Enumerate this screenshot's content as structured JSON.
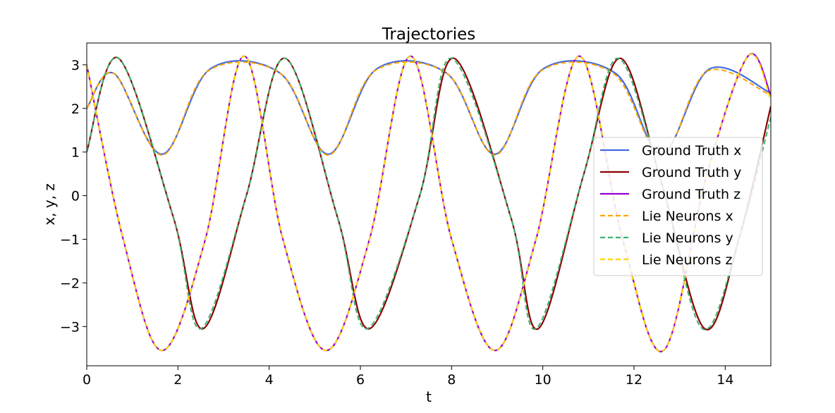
{
  "chart_data": {
    "type": "line",
    "title": "Trajectories",
    "xlabel": "t",
    "ylabel": "x, y, z",
    "xlim": [
      0,
      15
    ],
    "ylim": [
      -3.9,
      3.5
    ],
    "xticks": [
      0,
      2,
      4,
      6,
      8,
      10,
      12,
      14
    ],
    "yticks": [
      3,
      2,
      1,
      0,
      -1,
      -2,
      -3
    ],
    "xtick_labels": [
      "0",
      "2",
      "4",
      "6",
      "8",
      "10",
      "12",
      "14"
    ],
    "ytick_labels": [
      "3",
      "2",
      "1",
      "0",
      "−1",
      "−2",
      "−3"
    ],
    "grid": false,
    "legend_position": "center-right",
    "series": [
      {
        "name": "Ground Truth x",
        "color": "#4169e1",
        "dash": "solid",
        "x": [
          0,
          0.6,
          1.65,
          2.7,
          4.25,
          5.3,
          6.35,
          7.9,
          8.95,
          10.0,
          11.6,
          12.6,
          13.65,
          15.0
        ],
        "y": [
          2.0,
          2.8,
          0.95,
          2.9,
          2.8,
          0.95,
          2.9,
          2.8,
          0.95,
          2.9,
          2.8,
          0.95,
          2.9,
          2.35
        ]
      },
      {
        "name": "Ground Truth y",
        "color": "#8b0000",
        "dash": "solid",
        "x": [
          0,
          0.7,
          1.9,
          2.55,
          3.5,
          4.35,
          5.5,
          6.2,
          7.3,
          8.05,
          9.3,
          9.9,
          10.9,
          11.7,
          12.6,
          13.55,
          14.3,
          15.0
        ],
        "y": [
          1.0,
          3.15,
          -0.5,
          -3.05,
          0.0,
          3.15,
          -0.5,
          -3.05,
          0.0,
          3.15,
          -0.5,
          -3.05,
          0.5,
          3.15,
          0.3,
          -3.05,
          -1.0,
          2.05
        ]
      },
      {
        "name": "Ground Truth z",
        "color": "#9400d3",
        "dash": "solid",
        "x": [
          0,
          0.8,
          1.65,
          2.6,
          3.45,
          4.3,
          5.25,
          6.2,
          7.1,
          8.0,
          8.95,
          9.85,
          10.8,
          11.75,
          12.65,
          13.6,
          14.5,
          15.0
        ],
        "y": [
          3.0,
          -1.0,
          -3.55,
          -1.0,
          3.2,
          -1.0,
          -3.55,
          -1.0,
          3.2,
          -1.0,
          -3.55,
          -1.0,
          3.2,
          -1.0,
          -3.55,
          0.5,
          3.2,
          2.3
        ]
      },
      {
        "name": "Lie Neurons x",
        "color": "#ffa500",
        "dash": "dashed",
        "x": [
          0,
          0.6,
          1.65,
          2.65,
          4.25,
          5.3,
          6.3,
          7.9,
          8.95,
          9.95,
          11.55,
          12.6,
          13.6,
          15.0
        ],
        "y": [
          2.0,
          2.8,
          0.93,
          2.85,
          2.8,
          0.93,
          2.85,
          2.8,
          0.93,
          2.85,
          2.8,
          0.93,
          2.85,
          2.3
        ]
      },
      {
        "name": "Lie Neurons y",
        "color": "#3cb371",
        "dash": "dashed",
        "x": [
          0,
          0.7,
          1.9,
          2.5,
          3.5,
          4.35,
          5.5,
          6.15,
          7.3,
          8.0,
          9.3,
          9.85,
          10.9,
          11.65,
          12.6,
          13.5,
          14.3,
          15.0
        ],
        "y": [
          1.0,
          3.15,
          -0.5,
          -3.05,
          0.0,
          3.15,
          -0.5,
          -3.05,
          0.0,
          3.15,
          -0.5,
          -3.05,
          0.5,
          3.15,
          0.3,
          -3.05,
          -1.0,
          1.8
        ]
      },
      {
        "name": "Lie Neurons z",
        "color": "#ffd700",
        "dash": "dashed",
        "x": [
          0,
          0.8,
          1.65,
          2.6,
          3.45,
          4.3,
          5.25,
          6.2,
          7.1,
          8.0,
          8.95,
          9.85,
          10.8,
          11.75,
          12.65,
          13.6,
          14.5,
          15.0
        ],
        "y": [
          3.0,
          -1.0,
          -3.55,
          -1.0,
          3.2,
          -1.0,
          -3.55,
          -1.0,
          3.2,
          -1.0,
          -3.55,
          -1.0,
          3.2,
          -1.0,
          -3.55,
          0.5,
          3.2,
          2.2
        ]
      }
    ]
  }
}
